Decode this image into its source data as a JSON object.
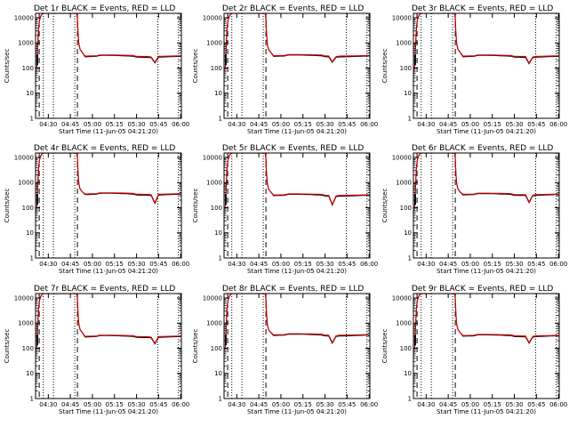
{
  "colors": {
    "events": "#000000",
    "lld": "#cc0000",
    "axes": "#000000",
    "background": "#ffffff"
  },
  "chart_data": {
    "type": "line",
    "scale_y": "log",
    "grid": false,
    "xlabel": "Start Time (11-Jun-05 04:21:20)",
    "ylabel": "Counts/sec",
    "x_tick_labels": [
      "04:30",
      "04:45",
      "05:00",
      "05:15",
      "05:30",
      "05:45",
      "06:00"
    ],
    "x_tick_minutes": [
      30,
      45,
      60,
      75,
      90,
      105,
      120
    ],
    "xlim_minutes": [
      21.33,
      120.5
    ],
    "y_tick_labels": [
      "1",
      "10",
      "100",
      "1000",
      "10000"
    ],
    "y_tick_values": [
      1,
      10,
      100,
      1000,
      10000
    ],
    "ylim": [
      1,
      15000
    ],
    "dotted_lines_minutes": [
      26.6,
      33.5,
      48.0,
      104.5,
      118.5
    ],
    "dashed_lines_minutes": [
      23.8,
      49.8
    ],
    "panels": [
      {
        "title": "Det 1r BLACK = Events, RED = LLD",
        "plateau": 280,
        "dip_minute": 102.0,
        "dip_value": 150
      },
      {
        "title": "Det 2r BLACK = Events, RED = LLD",
        "plateau": 290,
        "dip_minute": 96.0,
        "dip_value": 160
      },
      {
        "title": "Det 3r BLACK = Events, RED = LLD",
        "plateau": 280,
        "dip_minute": 101.0,
        "dip_value": 140
      },
      {
        "title": "Det 4r BLACK = Events, RED = LLD",
        "plateau": 330,
        "dip_minute": 102.0,
        "dip_value": 140
      },
      {
        "title": "Det 5r BLACK = Events, RED = LLD",
        "plateau": 300,
        "dip_minute": 96.0,
        "dip_value": 120
      },
      {
        "title": "Det 6r BLACK = Events, RED = LLD",
        "plateau": 320,
        "dip_minute": 101.0,
        "dip_value": 150
      },
      {
        "title": "Det 7r BLACK = Events, RED = LLD",
        "plateau": 280,
        "dip_minute": 102.0,
        "dip_value": 140
      },
      {
        "title": "Det 8r BLACK = Events, RED = LLD",
        "plateau": 320,
        "dip_minute": 96.0,
        "dip_value": 150
      },
      {
        "title": "Det 9r BLACK = Events, RED = LLD",
        "plateau": 300,
        "dip_minute": 101.0,
        "dip_value": 150
      }
    ]
  }
}
